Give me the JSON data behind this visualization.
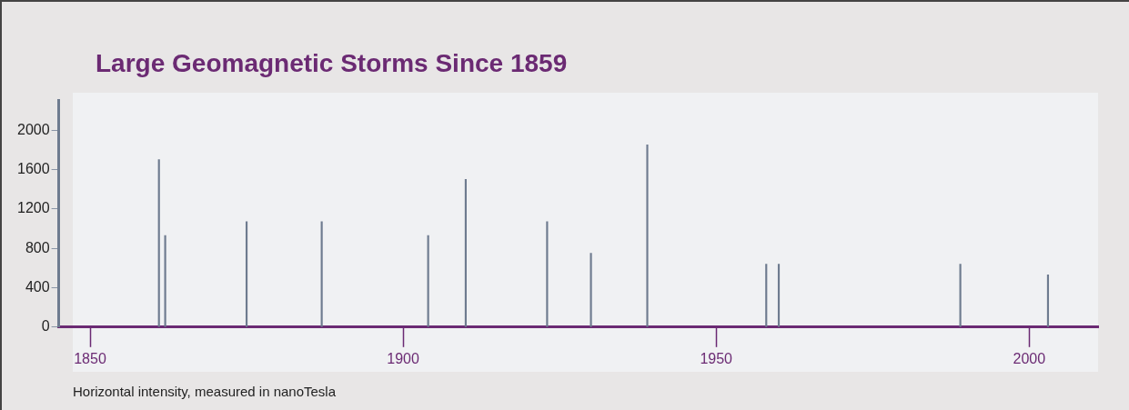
{
  "chart_data": {
    "type": "bar",
    "title": "Large Geomagnetic Storms Since 1859",
    "annotations": [
      "Horizontal intensity, measured in nanoTesla"
    ],
    "x": [
      1861,
      1862,
      1875,
      1887,
      1904,
      1910,
      1923,
      1930,
      1939,
      1958,
      1960,
      1989,
      2003
    ],
    "values": [
      1700,
      930,
      1070,
      1070,
      930,
      1500,
      1070,
      750,
      1850,
      640,
      640,
      640,
      530
    ],
    "color": "#6e7b8f",
    "xlim": [
      1845,
      2011
    ],
    "xticks": [
      1850,
      1900,
      1950,
      2000
    ],
    "ylim": [
      0,
      2300
    ],
    "yticks": [
      0,
      400,
      800,
      1200,
      1600,
      2000
    ],
    "grid": false,
    "legend": false
  }
}
